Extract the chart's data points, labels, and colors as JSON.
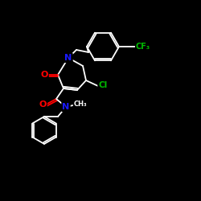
{
  "background_color": "#000000",
  "bond_color": "#ffffff",
  "atom_colors": {
    "N": "#1a1aff",
    "O": "#ff0000",
    "Cl": "#00bb00",
    "F": "#00bb00",
    "C": "#ffffff"
  }
}
